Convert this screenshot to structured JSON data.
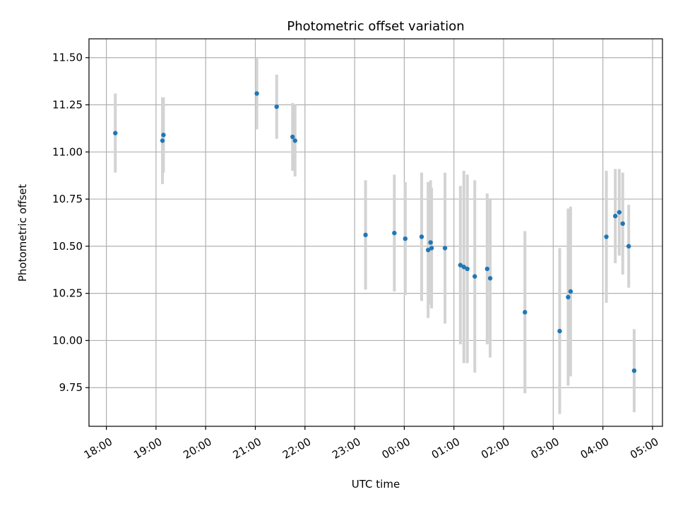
{
  "chart_data": {
    "type": "scatter",
    "title": "Photometric offset variation",
    "xlabel": "UTC time",
    "ylabel": "Photometric offset",
    "x_unit": "hours",
    "xlim": [
      17.65,
      29.2
    ],
    "ylim": [
      9.545,
      11.6
    ],
    "grid": true,
    "x_ticks": [
      {
        "value": 18,
        "label": "18:00"
      },
      {
        "value": 19,
        "label": "19:00"
      },
      {
        "value": 20,
        "label": "20:00"
      },
      {
        "value": 21,
        "label": "21:00"
      },
      {
        "value": 22,
        "label": "22:00"
      },
      {
        "value": 23,
        "label": "23:00"
      },
      {
        "value": 24,
        "label": "00:00"
      },
      {
        "value": 25,
        "label": "01:00"
      },
      {
        "value": 26,
        "label": "02:00"
      },
      {
        "value": 27,
        "label": "03:00"
      },
      {
        "value": 28,
        "label": "04:00"
      },
      {
        "value": 29,
        "label": "05:00"
      }
    ],
    "y_ticks": [
      {
        "value": 9.75,
        "label": "9.75"
      },
      {
        "value": 10.0,
        "label": "10.00"
      },
      {
        "value": 10.25,
        "label": "10.25"
      },
      {
        "value": 10.5,
        "label": "10.50"
      },
      {
        "value": 10.75,
        "label": "10.75"
      },
      {
        "value": 11.0,
        "label": "11.00"
      },
      {
        "value": 11.25,
        "label": "11.25"
      },
      {
        "value": 11.5,
        "label": "11.50"
      }
    ],
    "point_color": "#1f77b4",
    "errorbar_color": "#d3d3d3",
    "points": [
      {
        "x": 18.18,
        "y": 11.1,
        "err": 0.21
      },
      {
        "x": 19.13,
        "y": 11.06,
        "err": 0.23
      },
      {
        "x": 19.15,
        "y": 11.09,
        "err": 0.2
      },
      {
        "x": 21.03,
        "y": 11.31,
        "err": 0.19
      },
      {
        "x": 21.43,
        "y": 11.24,
        "err": 0.17
      },
      {
        "x": 21.75,
        "y": 11.08,
        "err": 0.18
      },
      {
        "x": 21.8,
        "y": 11.06,
        "err": 0.19
      },
      {
        "x": 23.22,
        "y": 10.56,
        "err": 0.29
      },
      {
        "x": 23.8,
        "y": 10.57,
        "err": 0.31
      },
      {
        "x": 24.02,
        "y": 10.54,
        "err": 0.3
      },
      {
        "x": 24.35,
        "y": 10.55,
        "err": 0.34
      },
      {
        "x": 24.48,
        "y": 10.48,
        "err": 0.36
      },
      {
        "x": 24.53,
        "y": 10.52,
        "err": 0.33
      },
      {
        "x": 24.55,
        "y": 10.49,
        "err": 0.32
      },
      {
        "x": 24.82,
        "y": 10.49,
        "err": 0.4
      },
      {
        "x": 25.13,
        "y": 10.4,
        "err": 0.42
      },
      {
        "x": 25.2,
        "y": 10.39,
        "err": 0.51
      },
      {
        "x": 25.27,
        "y": 10.38,
        "err": 0.5
      },
      {
        "x": 25.42,
        "y": 10.34,
        "err": 0.51
      },
      {
        "x": 25.67,
        "y": 10.38,
        "err": 0.4
      },
      {
        "x": 25.73,
        "y": 10.33,
        "err": 0.42
      },
      {
        "x": 26.43,
        "y": 10.15,
        "err": 0.43
      },
      {
        "x": 27.13,
        "y": 10.05,
        "err": 0.44
      },
      {
        "x": 27.3,
        "y": 10.23,
        "err": 0.47
      },
      {
        "x": 27.35,
        "y": 10.26,
        "err": 0.45
      },
      {
        "x": 28.07,
        "y": 10.55,
        "err": 0.35
      },
      {
        "x": 28.25,
        "y": 10.66,
        "err": 0.25
      },
      {
        "x": 28.33,
        "y": 10.68,
        "err": 0.23
      },
      {
        "x": 28.4,
        "y": 10.62,
        "err": 0.27
      },
      {
        "x": 28.52,
        "y": 10.5,
        "err": 0.22
      },
      {
        "x": 28.63,
        "y": 9.84,
        "err": 0.22
      }
    ]
  }
}
